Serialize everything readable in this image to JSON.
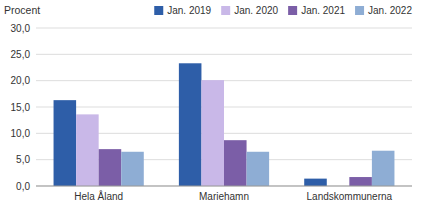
{
  "chart_data": {
    "type": "bar",
    "y_label": "Procent",
    "categories": [
      "Hela Åland",
      "Mariehamn",
      "Landskommunerna"
    ],
    "series": [
      {
        "name": "Jan. 2019",
        "color": "#2E5EA8",
        "values": [
          16.3,
          23.3,
          1.4
        ]
      },
      {
        "name": "Jan. 2020",
        "color": "#C9B8E8",
        "values": [
          13.6,
          20.1,
          0.0
        ]
      },
      {
        "name": "Jan. 2021",
        "color": "#7B5EA7",
        "values": [
          7.0,
          8.7,
          1.7
        ]
      },
      {
        "name": "Jan. 2022",
        "color": "#8EADD4",
        "values": [
          6.5,
          6.5,
          6.7
        ]
      }
    ],
    "ylim": [
      0,
      30
    ],
    "yticks": [
      {
        "value": 0,
        "label": "0,0"
      },
      {
        "value": 5,
        "label": "5,0"
      },
      {
        "value": 10,
        "label": "10,0"
      },
      {
        "value": 15,
        "label": "15,0"
      },
      {
        "value": 20,
        "label": "20,0"
      },
      {
        "value": 25,
        "label": "25,0"
      },
      {
        "value": 30,
        "label": "30,0"
      }
    ],
    "grid": true,
    "legend": "upper-right"
  }
}
